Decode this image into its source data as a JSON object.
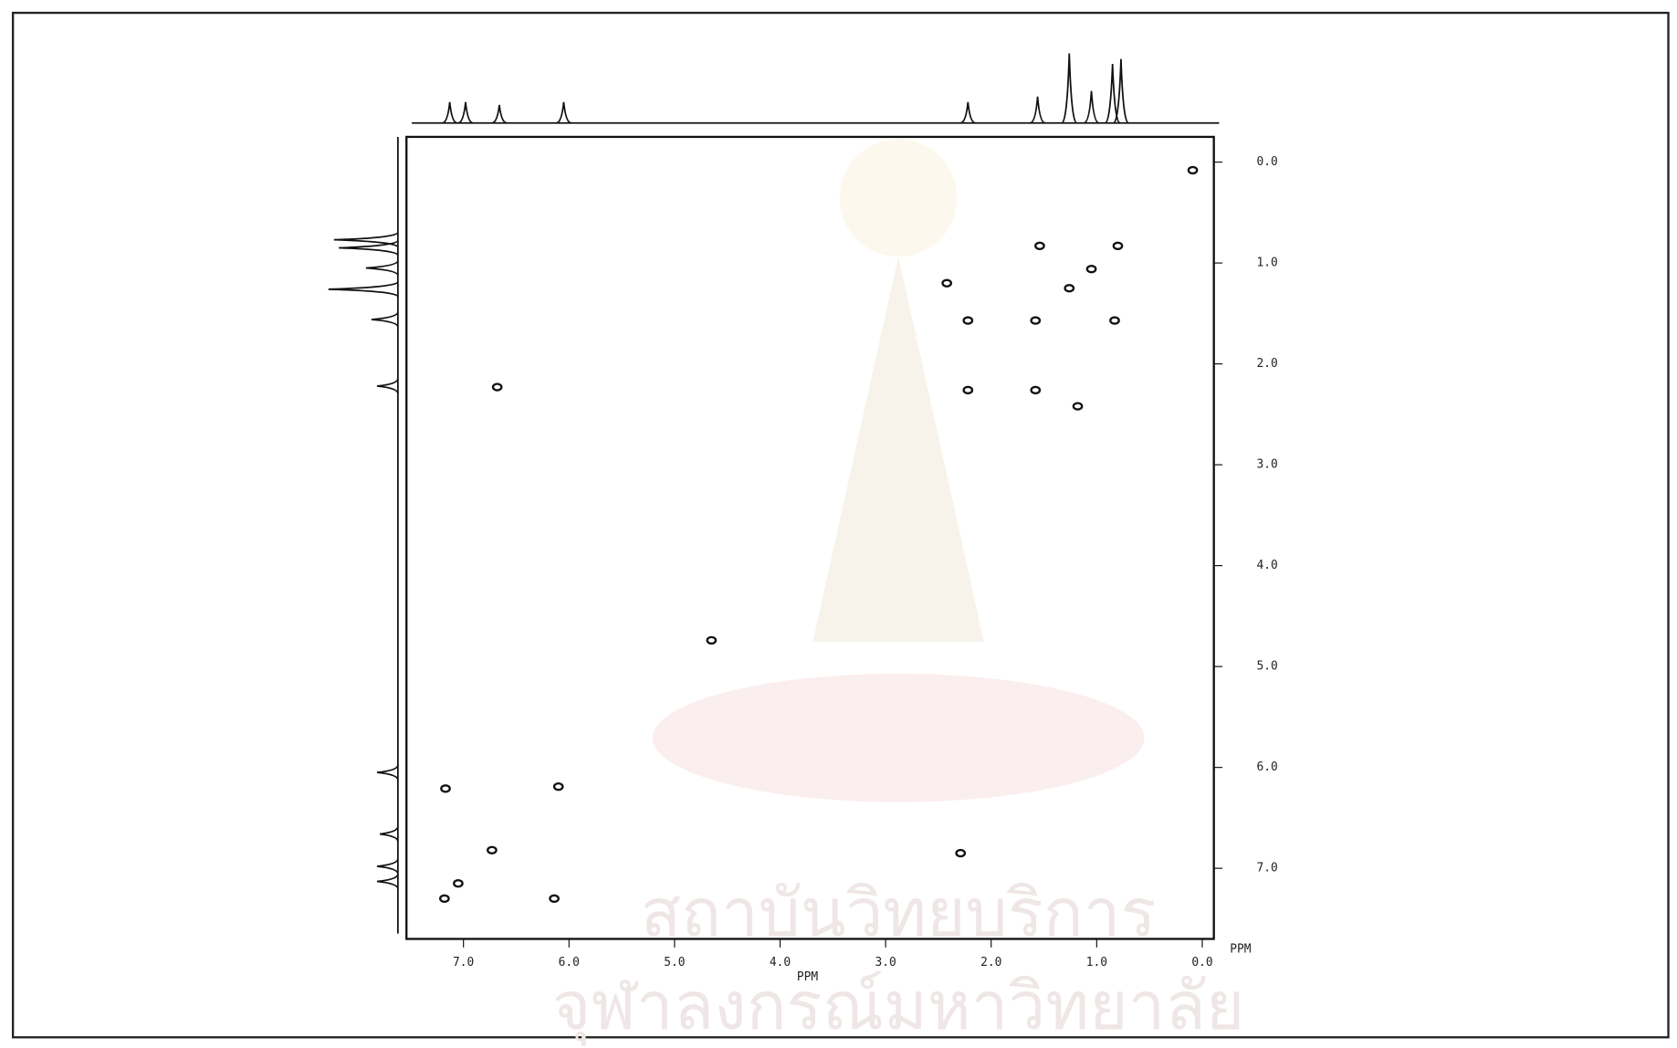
{
  "chart_data": {
    "type": "scatter",
    "x_label": "PPM",
    "y_label": "PPM",
    "x": [
      0.09,
      0.8,
      1.54,
      1.05,
      1.26,
      0.83,
      2.42,
      2.22,
      1.58,
      2.22,
      1.58,
      1.18,
      6.68,
      4.65,
      7.17,
      6.1,
      6.73,
      2.29,
      7.05,
      7.18,
      6.14
    ],
    "values": [
      0.08,
      0.83,
      0.83,
      1.06,
      1.25,
      1.57,
      1.2,
      1.57,
      1.57,
      2.26,
      2.26,
      2.42,
      2.23,
      4.74,
      6.21,
      6.19,
      6.82,
      6.85,
      7.15,
      7.3,
      7.3
    ],
    "color": "#111111",
    "xlim": [
      7.54,
      -0.11
    ],
    "ylim": [
      7.7,
      -0.25
    ],
    "xticks": [
      {
        "value": 7,
        "label": "7.0"
      },
      {
        "value": 6,
        "label": "6.0"
      },
      {
        "value": 5,
        "label": "5.0"
      },
      {
        "value": 4,
        "label": "4.0"
      },
      {
        "value": 3,
        "label": "3.0"
      },
      {
        "value": 2,
        "label": "2.0"
      },
      {
        "value": 1,
        "label": "1.0"
      },
      {
        "value": 0,
        "label": "0.0"
      }
    ],
    "yticks": [
      {
        "value": 0,
        "label": "0.0"
      },
      {
        "value": 1,
        "label": "1.0"
      },
      {
        "value": 2,
        "label": "2.0"
      },
      {
        "value": 3,
        "label": "3.0"
      },
      {
        "value": 4,
        "label": "4.0"
      },
      {
        "value": 5,
        "label": "5.0"
      },
      {
        "value": 6,
        "label": "6.0"
      },
      {
        "value": 7,
        "label": "7.0"
      }
    ],
    "projection": {
      "x": [
        7.13,
        6.98,
        6.66,
        6.05,
        2.22,
        1.56,
        1.26,
        1.05,
        0.85,
        0.77
      ],
      "values": [
        30,
        30,
        26,
        30,
        30,
        38,
        100,
        46,
        85,
        92
      ]
    },
    "watermark": [
      "สถาบันวิทยบริการ",
      "จุฬาลงกรณ์มหาวิทยาลัย"
    ]
  }
}
